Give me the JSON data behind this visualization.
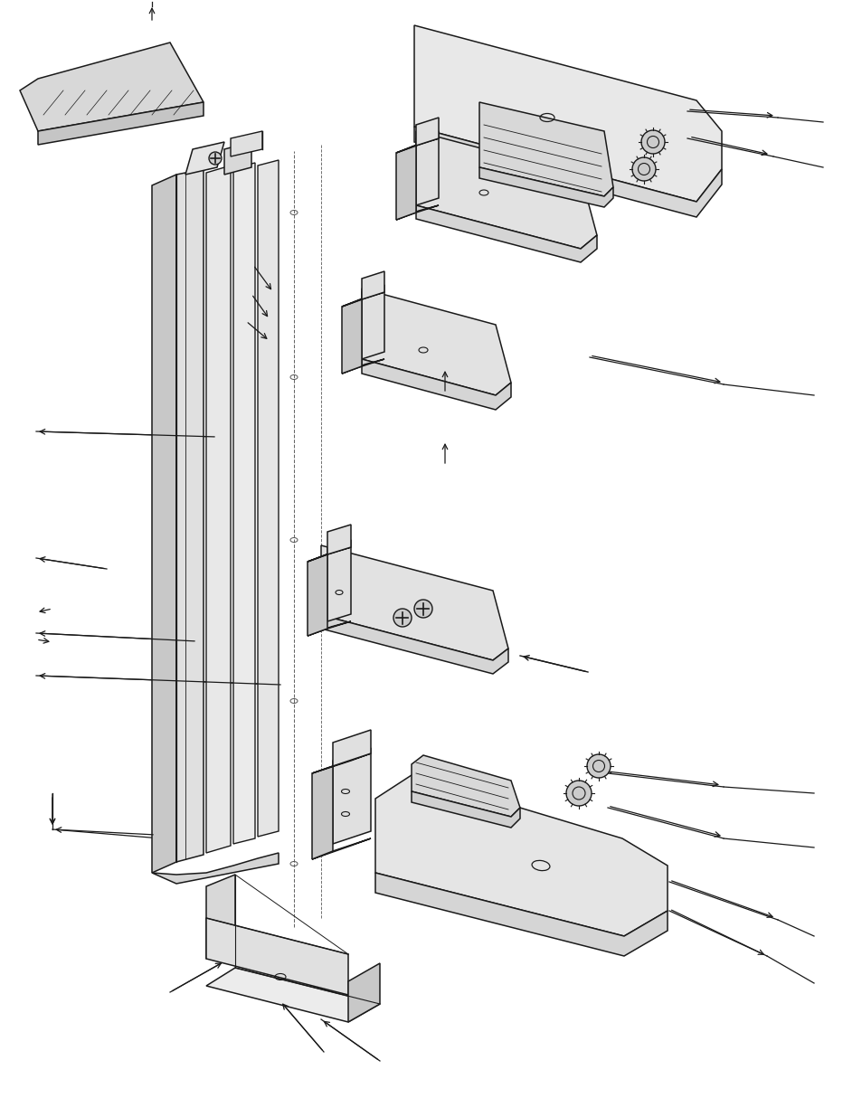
{
  "background_color": "#ffffff",
  "line_color": "#1a1a1a",
  "light_gray": "#e8e8e8",
  "mid_gray": "#d0d0d0",
  "dark_gray": "#b0b0b0",
  "figsize": [
    9.54,
    12.35
  ],
  "dpi": 100
}
